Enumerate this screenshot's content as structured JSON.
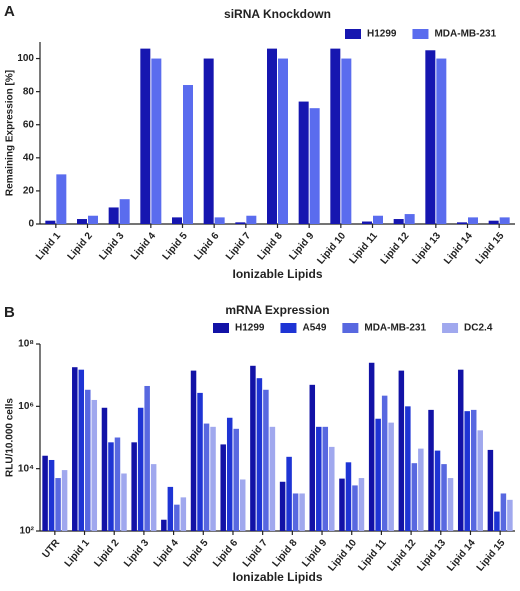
{
  "chart_data": [
    {
      "type": "bar",
      "panel_label": "A",
      "title": "siRNA Knockdown",
      "x_label": "Ionizable Lipids",
      "y_label": "Remaining Expression [%]",
      "categories": [
        "Lipid 1",
        "Lipid 2",
        "Lipid 3",
        "Lipid 4",
        "Lipid 5",
        "Lipid 6",
        "Lipid 7",
        "Lipid 8",
        "Lipid 9",
        "Lipid 10",
        "Lipid 11",
        "Lipid 12",
        "Lipid 13",
        "Lipid 14",
        "Lipid 15"
      ],
      "series": [
        {
          "name": "H1299",
          "color": "#1616b0",
          "values": [
            2,
            3,
            10,
            106,
            4,
            100,
            1,
            106,
            74,
            106,
            1.5,
            3,
            105,
            1,
            2
          ]
        },
        {
          "name": "MDA-MB-231",
          "color": "#5a6cee",
          "values": [
            30,
            5,
            15,
            100,
            84,
            4,
            5,
            100,
            70,
            100,
            5,
            6,
            100,
            4,
            4
          ]
        }
      ],
      "ylim": [
        0,
        110
      ],
      "yticks": [
        0,
        20,
        40,
        60,
        80,
        100
      ],
      "log_scale": false,
      "grid": false,
      "legend": "top-right"
    },
    {
      "type": "bar",
      "panel_label": "B",
      "title": "mRNA Expression",
      "x_label": "Ionizable Lipids",
      "y_label": "RLU/10.000 cells",
      "categories": [
        "UTR",
        "Lipid 1",
        "Lipid 2",
        "Lipid 3",
        "Lipid 4",
        "Lipid 5",
        "Lipid 6",
        "Lipid 7",
        "Lipid 8",
        "Lipid 9",
        "Lipid 10",
        "Lipid 11",
        "Lipid 12",
        "Lipid 13",
        "Lipid 14",
        "Lipid 15"
      ],
      "series": [
        {
          "name": "H1299",
          "color": "#1212a6",
          "values": [
            26000,
            18000000,
            900000,
            70000,
            230,
            14000000,
            60000,
            20000000,
            3800,
            4900000,
            4800,
            25000000,
            14000000,
            770000,
            15000000,
            40000
          ]
        },
        {
          "name": "A549",
          "color": "#1e34d4",
          "values": [
            19000,
            15000000,
            70000,
            900000,
            2600,
            2700000,
            430000,
            8000000,
            24000,
            220000,
            16000,
            400000,
            1000000,
            38000,
            700000,
            420
          ]
        },
        {
          "name": "MDA-MB-231",
          "color": "#5868e0",
          "values": [
            5000,
            3400000,
            100000,
            4500000,
            700,
            280000,
            190000,
            3400000,
            1600,
            220000,
            2900,
            2200000,
            15000,
            14000,
            770000,
            1600
          ]
        },
        {
          "name": "DC2.4",
          "color": "#a0a8ee",
          "values": [
            9000,
            1600000,
            7000,
            14000,
            1200,
            220000,
            4500,
            220000,
            1600,
            50000,
            5000,
            300000,
            44000,
            5000,
            170000,
            1000
          ]
        }
      ],
      "ylim": [
        100,
        100000000
      ],
      "yticks": [
        {
          "value": 100,
          "label": "10²"
        },
        {
          "value": 10000,
          "label": "10⁴"
        },
        {
          "value": 1000000,
          "label": "10⁶"
        },
        {
          "value": 100000000,
          "label": "10⁸"
        }
      ],
      "log_scale": true,
      "grid": false,
      "legend": "top"
    }
  ]
}
